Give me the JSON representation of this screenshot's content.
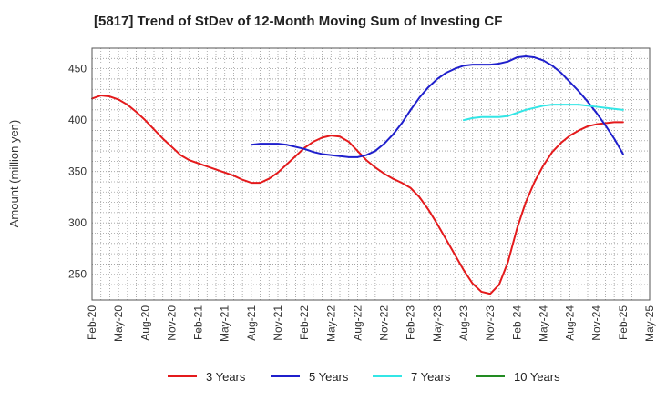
{
  "chart_data": {
    "type": "line",
    "title": "[5817]  Trend of StDev of 12-Month Moving Sum of Investing CF",
    "ylabel": "Amount (million yen)",
    "xlabel": "",
    "ylim": [
      225,
      470
    ],
    "yticks": [
      250,
      300,
      350,
      400,
      450
    ],
    "xlim": [
      "2020-02",
      "2025-05"
    ],
    "xticks": [
      "Feb-20",
      "May-20",
      "Aug-20",
      "Nov-20",
      "Feb-21",
      "May-21",
      "Aug-21",
      "Nov-21",
      "Feb-22",
      "May-22",
      "Aug-22",
      "Nov-22",
      "Feb-23",
      "May-23",
      "Aug-23",
      "Nov-23",
      "Feb-24",
      "May-24",
      "Aug-24",
      "Nov-24",
      "Feb-25",
      "May-25"
    ],
    "grid": true,
    "legend_position": "bottom",
    "series": [
      {
        "name": "3 Years",
        "color": "#e41a1c",
        "points": [
          [
            "2020-02",
            421
          ],
          [
            "2020-03",
            424
          ],
          [
            "2020-04",
            423
          ],
          [
            "2020-05",
            420
          ],
          [
            "2020-06",
            415
          ],
          [
            "2020-07",
            408
          ],
          [
            "2020-08",
            400
          ],
          [
            "2020-09",
            391
          ],
          [
            "2020-10",
            382
          ],
          [
            "2020-11",
            374
          ],
          [
            "2020-12",
            366
          ],
          [
            "2021-01",
            361
          ],
          [
            "2021-02",
            358
          ],
          [
            "2021-03",
            355
          ],
          [
            "2021-04",
            352
          ],
          [
            "2021-05",
            349
          ],
          [
            "2021-06",
            346
          ],
          [
            "2021-07",
            342
          ],
          [
            "2021-08",
            339
          ],
          [
            "2021-09",
            339
          ],
          [
            "2021-10",
            343
          ],
          [
            "2021-11",
            349
          ],
          [
            "2021-12",
            357
          ],
          [
            "2022-01",
            365
          ],
          [
            "2022-02",
            373
          ],
          [
            "2022-03",
            379
          ],
          [
            "2022-04",
            383
          ],
          [
            "2022-05",
            385
          ],
          [
            "2022-06",
            384
          ],
          [
            "2022-07",
            379
          ],
          [
            "2022-08",
            370
          ],
          [
            "2022-09",
            361
          ],
          [
            "2022-10",
            354
          ],
          [
            "2022-11",
            348
          ],
          [
            "2022-12",
            343
          ],
          [
            "2023-01",
            339
          ],
          [
            "2023-02",
            334
          ],
          [
            "2023-03",
            325
          ],
          [
            "2023-04",
            313
          ],
          [
            "2023-05",
            299
          ],
          [
            "2023-06",
            284
          ],
          [
            "2023-07",
            269
          ],
          [
            "2023-08",
            254
          ],
          [
            "2023-09",
            241
          ],
          [
            "2023-10",
            233
          ],
          [
            "2023-11",
            231
          ],
          [
            "2023-12",
            240
          ],
          [
            "2024-01",
            262
          ],
          [
            "2024-02",
            294
          ],
          [
            "2024-03",
            320
          ],
          [
            "2024-04",
            340
          ],
          [
            "2024-05",
            356
          ],
          [
            "2024-06",
            369
          ],
          [
            "2024-07",
            378
          ],
          [
            "2024-08",
            385
          ],
          [
            "2024-09",
            390
          ],
          [
            "2024-10",
            394
          ],
          [
            "2024-11",
            396
          ],
          [
            "2024-12",
            397
          ],
          [
            "2025-01",
            398
          ],
          [
            "2025-02",
            398
          ]
        ]
      },
      {
        "name": "5 Years",
        "color": "#1f1fcc",
        "points": [
          [
            "2021-08",
            376
          ],
          [
            "2021-09",
            377
          ],
          [
            "2021-10",
            377
          ],
          [
            "2021-11",
            377
          ],
          [
            "2021-12",
            376
          ],
          [
            "2022-01",
            374
          ],
          [
            "2022-02",
            372
          ],
          [
            "2022-03",
            369
          ],
          [
            "2022-04",
            367
          ],
          [
            "2022-05",
            366
          ],
          [
            "2022-06",
            365
          ],
          [
            "2022-07",
            364
          ],
          [
            "2022-08",
            364
          ],
          [
            "2022-09",
            366
          ],
          [
            "2022-10",
            370
          ],
          [
            "2022-11",
            377
          ],
          [
            "2022-12",
            386
          ],
          [
            "2023-01",
            397
          ],
          [
            "2023-02",
            410
          ],
          [
            "2023-03",
            422
          ],
          [
            "2023-04",
            432
          ],
          [
            "2023-05",
            440
          ],
          [
            "2023-06",
            446
          ],
          [
            "2023-07",
            450
          ],
          [
            "2023-08",
            453
          ],
          [
            "2023-09",
            454
          ],
          [
            "2023-10",
            454
          ],
          [
            "2023-11",
            454
          ],
          [
            "2023-12",
            455
          ],
          [
            "2024-01",
            457
          ],
          [
            "2024-02",
            461
          ],
          [
            "2024-03",
            462
          ],
          [
            "2024-04",
            461
          ],
          [
            "2024-05",
            458
          ],
          [
            "2024-06",
            453
          ],
          [
            "2024-07",
            446
          ],
          [
            "2024-08",
            437
          ],
          [
            "2024-09",
            428
          ],
          [
            "2024-10",
            418
          ],
          [
            "2024-11",
            407
          ],
          [
            "2024-12",
            395
          ],
          [
            "2025-01",
            382
          ],
          [
            "2025-02",
            367
          ]
        ]
      },
      {
        "name": "7 Years",
        "color": "#33e6e6",
        "points": [
          [
            "2023-08",
            400
          ],
          [
            "2023-09",
            402
          ],
          [
            "2023-10",
            403
          ],
          [
            "2023-11",
            403
          ],
          [
            "2023-12",
            403
          ],
          [
            "2024-01",
            404
          ],
          [
            "2024-02",
            407
          ],
          [
            "2024-03",
            410
          ],
          [
            "2024-04",
            412
          ],
          [
            "2024-05",
            414
          ],
          [
            "2024-06",
            415
          ],
          [
            "2024-07",
            415
          ],
          [
            "2024-08",
            415
          ],
          [
            "2024-09",
            415
          ],
          [
            "2024-10",
            414
          ],
          [
            "2024-11",
            413
          ],
          [
            "2024-12",
            412
          ],
          [
            "2025-01",
            411
          ],
          [
            "2025-02",
            410
          ]
        ]
      },
      {
        "name": "10 Years",
        "color": "#228b22",
        "points": []
      }
    ]
  }
}
